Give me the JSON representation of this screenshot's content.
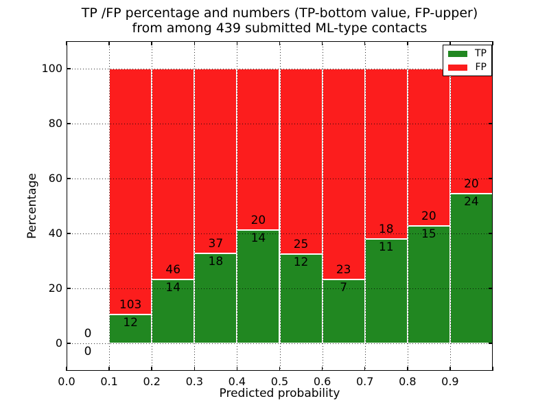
{
  "title": {
    "line1": "TP /FP percentage and numbers (TP-bottom value, FP-upper)",
    "line2": "from among 439 submitted ML-type contacts"
  },
  "axes": {
    "xlabel": "Predicted probability",
    "ylabel": "Percentage",
    "x_tick_labels": [
      "0.0",
      "0.1",
      "0.2",
      "0.3",
      "0.4",
      "0.5",
      "0.6",
      "0.7",
      "0.8",
      "0.9"
    ],
    "y_tick_labels": [
      "0",
      "20",
      "40",
      "60",
      "80",
      "100"
    ],
    "grid_style": "dotted"
  },
  "legend": {
    "position": "upper-right",
    "entries": [
      {
        "label": "TP",
        "color": "#218721"
      },
      {
        "label": "FP",
        "color": "#fc1d1d"
      }
    ]
  },
  "chart_data": {
    "type": "bar",
    "mode": "stacked-percentage",
    "title": "TP /FP percentage and numbers (TP-bottom value, FP-upper) from among 439 submitted ML-type contacts",
    "xlabel": "Predicted probability",
    "ylabel": "Percentage",
    "xlim": [
      0.0,
      1.0
    ],
    "ylim": [
      -10,
      110
    ],
    "grid": true,
    "legend_position": "upper-right",
    "bin_edges": [
      0.0,
      0.1,
      0.2,
      0.3,
      0.4,
      0.5,
      0.6,
      0.7,
      0.8,
      0.9,
      1.0
    ],
    "y_gridlines": [
      0,
      20,
      40,
      60,
      80,
      100
    ],
    "x_gridlines": [
      0.1,
      0.2,
      0.3,
      0.4,
      0.5,
      0.6,
      0.7,
      0.8,
      0.9
    ],
    "series": [
      {
        "name": "TP",
        "color": "#218721",
        "counts": [
          0,
          12,
          14,
          18,
          14,
          12,
          7,
          11,
          15,
          24
        ]
      },
      {
        "name": "FP",
        "color": "#fc1d1d",
        "counts": [
          0,
          103,
          46,
          37,
          20,
          25,
          23,
          18,
          20,
          20
        ]
      }
    ],
    "tp_percent_by_bin": [
      null,
      10.4,
      23.3,
      32.7,
      41.2,
      32.4,
      23.3,
      37.9,
      42.9,
      54.5
    ],
    "total_contacts": 439
  }
}
